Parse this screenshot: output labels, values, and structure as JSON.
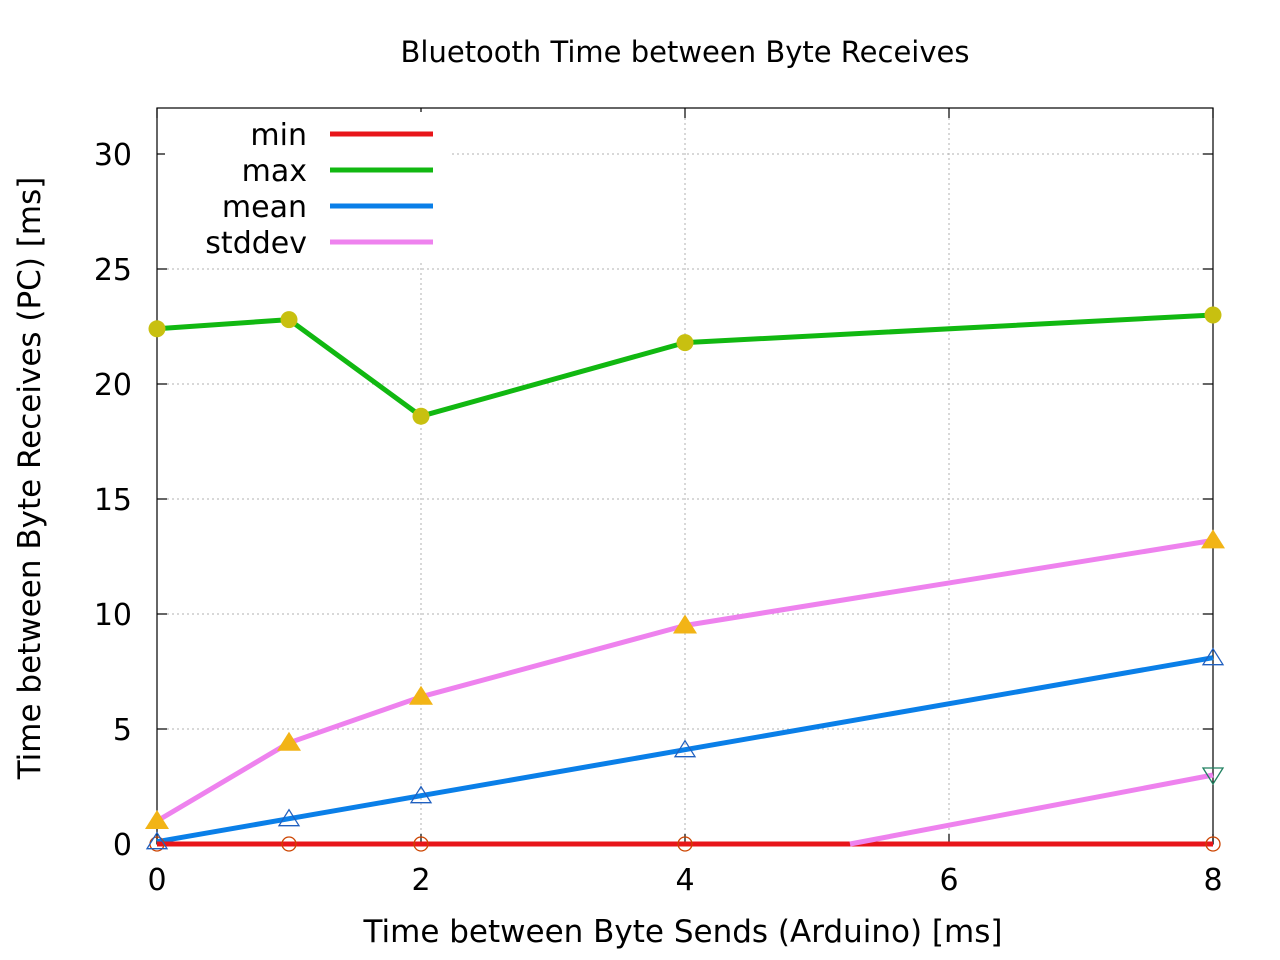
{
  "chart_data": {
    "type": "line",
    "title": "Bluetooth Time between Byte Receives",
    "xlabel": "Time between Byte Sends (Arduino) [ms]",
    "ylabel": "Time between Byte Receives (PC) [ms]",
    "xlim": [
      0,
      8
    ],
    "ylim": [
      0,
      32
    ],
    "x_ticks": [
      "0",
      "2",
      "4",
      "6",
      "8"
    ],
    "y_ticks": [
      "0",
      "5",
      "10",
      "15",
      "20",
      "25",
      "30"
    ],
    "grid": true,
    "legend_position": "top-left",
    "x": [
      0,
      1,
      2,
      4,
      8
    ],
    "series": [
      {
        "name": "min",
        "color": "#e8151a",
        "marker": "circle-open",
        "marker_color": "#cc4400",
        "values": [
          0.0,
          0.0,
          0.0,
          0.0,
          0.0
        ]
      },
      {
        "name": "max",
        "color": "#11b811",
        "marker": "circle-filled",
        "marker_color": "#c8c010",
        "values": [
          22.4,
          22.8,
          18.6,
          21.8,
          23.0
        ]
      },
      {
        "name": "mean",
        "color": "#0a7fe8",
        "marker": "triangle-open",
        "marker_color": "#2060c0",
        "values": [
          0.1,
          1.1,
          2.1,
          4.1,
          8.1
        ]
      },
      {
        "name": "stddev",
        "color": "#ee82ee",
        "marker": "triangle-filled",
        "marker_color": "#f2b416",
        "values": [
          1.0,
          4.4,
          6.4,
          9.5,
          13.2
        ]
      }
    ],
    "extra_segment": {
      "color": "#ee82ee",
      "marker": "triangle-down-open",
      "marker_color": "#208060",
      "x": [
        5.25,
        8
      ],
      "y": [
        0.0,
        3.0
      ]
    }
  }
}
